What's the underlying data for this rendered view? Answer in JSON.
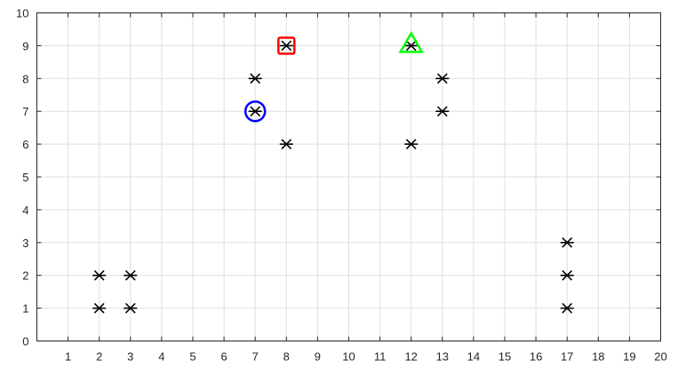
{
  "chart_data": {
    "type": "scatter",
    "title": "",
    "xlabel": "",
    "ylabel": "",
    "xlim": [
      0,
      20
    ],
    "ylim": [
      0,
      10
    ],
    "grid": true,
    "x_ticks": [
      "1",
      "2",
      "3",
      "4",
      "5",
      "6",
      "7",
      "8",
      "9",
      "10",
      "11",
      "12",
      "13",
      "14",
      "15",
      "16",
      "17",
      "18",
      "19",
      "20"
    ],
    "y_ticks": [
      "0",
      "1",
      "2",
      "3",
      "4",
      "5",
      "6",
      "7",
      "8",
      "9",
      "10"
    ],
    "series": [
      {
        "name": "points",
        "marker": "asterisk",
        "color": "#000000",
        "points": [
          {
            "x": 2,
            "y": 1
          },
          {
            "x": 2,
            "y": 2
          },
          {
            "x": 3,
            "y": 1
          },
          {
            "x": 3,
            "y": 2
          },
          {
            "x": 7,
            "y": 7
          },
          {
            "x": 7,
            "y": 8
          },
          {
            "x": 8,
            "y": 6
          },
          {
            "x": 8,
            "y": 9
          },
          {
            "x": 12,
            "y": 6
          },
          {
            "x": 12,
            "y": 9
          },
          {
            "x": 13,
            "y": 7
          },
          {
            "x": 13,
            "y": 8
          },
          {
            "x": 17,
            "y": 1
          },
          {
            "x": 17,
            "y": 2
          },
          {
            "x": 17,
            "y": 3
          }
        ]
      },
      {
        "name": "highlight-circle",
        "marker": "circle",
        "color": "#0000ff",
        "points": [
          {
            "x": 7,
            "y": 7
          }
        ]
      },
      {
        "name": "highlight-square",
        "marker": "square",
        "color": "#ff0000",
        "points": [
          {
            "x": 8,
            "y": 9
          }
        ]
      },
      {
        "name": "highlight-triangle",
        "marker": "triangle",
        "color": "#00ff00",
        "points": [
          {
            "x": 12,
            "y": 9
          }
        ]
      }
    ]
  }
}
